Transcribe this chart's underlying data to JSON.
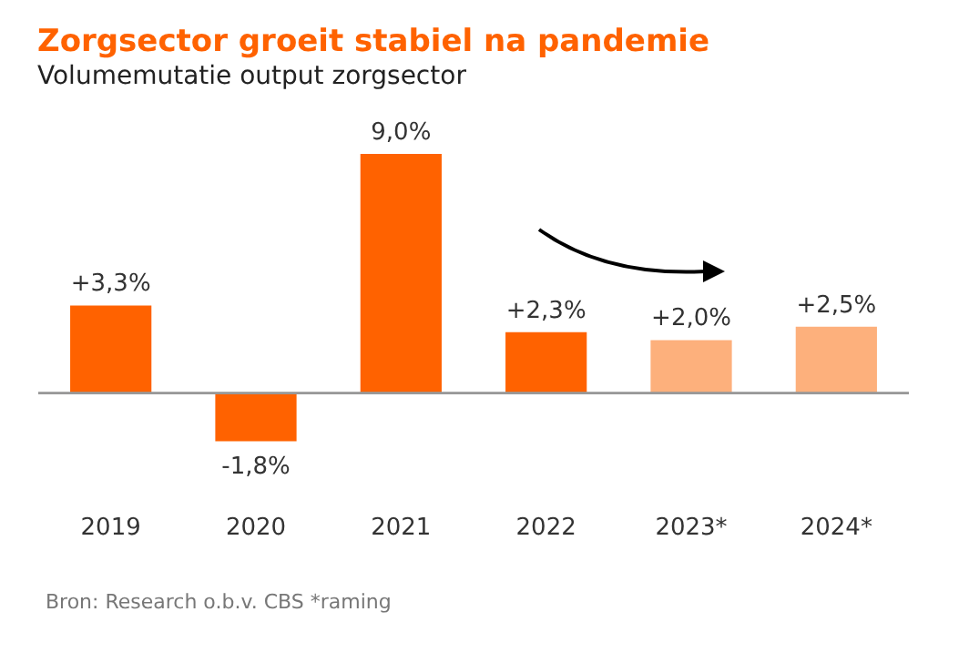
{
  "chart_data": {
    "type": "bar",
    "title": "Zorgsector groeit stabiel na pandemie",
    "subtitle": "Volumemutatie output zorgsector",
    "categories": [
      "2019",
      "2020",
      "2021",
      "2022",
      "2023*",
      "2024*"
    ],
    "values": [
      3.3,
      -1.8,
      9.0,
      2.3,
      2.0,
      2.5
    ],
    "colors": [
      "#ff6200",
      "#ff6200",
      "#ff6200",
      "#ff6200",
      "#fdb07c",
      "#fdb07c"
    ],
    "value_labels": [
      "+3,3%",
      "-1,8%",
      "9,0%",
      "+2,3%",
      "+2,0%",
      "+2,5%"
    ],
    "annotations": [
      "Bron: Research o.b.v. CBS *raming"
    ],
    "grid": false
  }
}
